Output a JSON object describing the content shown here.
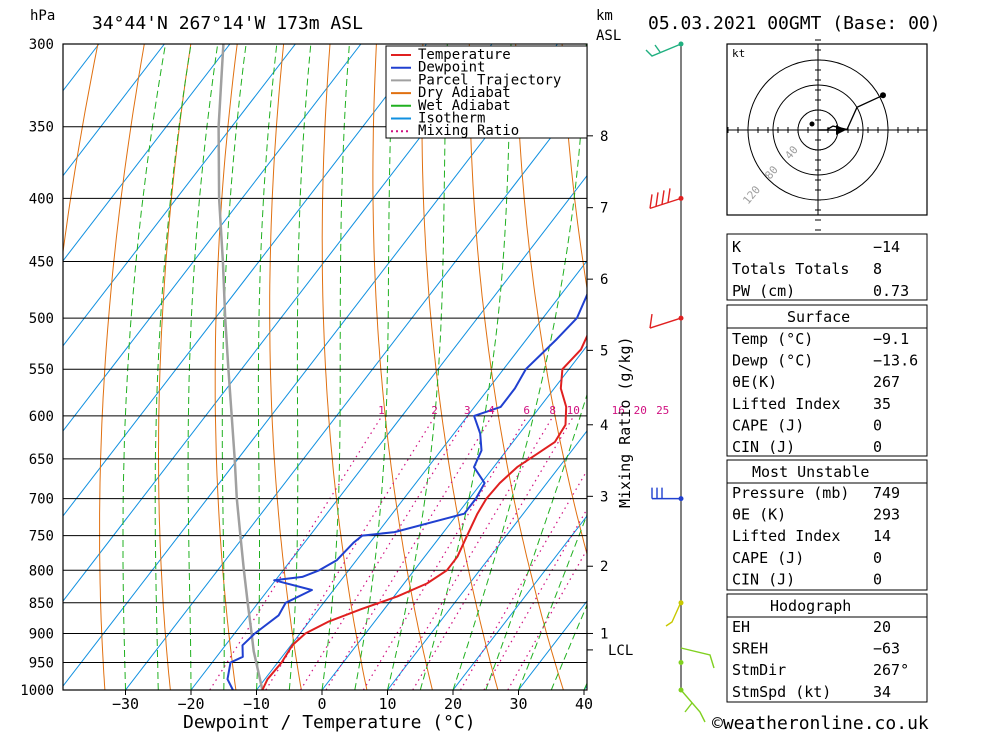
{
  "header": {
    "location": "34°44'N 267°14'W 173m ASL",
    "datetime": "05.03.2021 00GMT (Base: 00)",
    "hpa_label": "hPa",
    "km_label": "km",
    "asl_label": "ASL"
  },
  "footer": {
    "site": "©weatheronline.co.uk"
  },
  "colors": {
    "temperature": "#e02020",
    "dewpoint": "#2040d0",
    "parcel": "#a0a0a0",
    "dry_adiabat": "#e07010",
    "wet_adiabat": "#20b020",
    "isotherm": "#1090e0",
    "mixing_ratio": "#d01080",
    "wind_red": "#e02020",
    "wind_blue": "#2040d0",
    "wind_yellow": "#c8c800",
    "wind_green": "#80d020",
    "wind_teal": "#20b080"
  },
  "chart_data": {
    "type": "skew-t",
    "xlabel": "Dewpoint / Temperature (°C)",
    "ylabel": "hPa",
    "xlim": [
      -40,
      40
    ],
    "x_ticks": [
      -30,
      -20,
      -10,
      0,
      10,
      20,
      30,
      40
    ],
    "x_tick_labels": [
      "−30",
      "−20",
      "−10",
      "0",
      "10",
      "20",
      "30",
      "40"
    ],
    "ylim": [
      1000,
      300
    ],
    "y_scale": "log",
    "pressure_levels": [
      300,
      350,
      400,
      450,
      500,
      550,
      600,
      650,
      700,
      750,
      800,
      850,
      900,
      950,
      1000
    ],
    "km_ticks": [
      {
        "label": "8",
        "p": 356
      },
      {
        "label": "7",
        "p": 407
      },
      {
        "label": "6",
        "p": 465
      },
      {
        "label": "5",
        "p": 531
      },
      {
        "label": "4",
        "p": 610
      },
      {
        "label": "3",
        "p": 697
      },
      {
        "label": "2",
        "p": 794
      },
      {
        "label": "1",
        "p": 900
      },
      {
        "label": "LCL",
        "p": 928
      }
    ],
    "mixing_ratio_axis_label": "Mixing Ratio (g/kg)",
    "mixing_ratio_values": [
      "1",
      "2",
      "3",
      "4",
      "6",
      "8",
      "10",
      "16",
      "20",
      "25"
    ],
    "legend": [
      "Temperature",
      "Dewpoint",
      "Parcel Trajectory",
      "Dry Adiabat",
      "Wet Adiabat",
      "Isotherm",
      "Mixing Ratio"
    ],
    "legend_position": "top-right",
    "series": [
      {
        "name": "Temperature",
        "points": [
          [
            1000,
            -9.1
          ],
          [
            980,
            -9.6
          ],
          [
            950,
            -9.4
          ],
          [
            920,
            -9.8
          ],
          [
            900,
            -9.2
          ],
          [
            880,
            -7
          ],
          [
            860,
            -3.5
          ],
          [
            840,
            0.5
          ],
          [
            820,
            3.5
          ],
          [
            800,
            5
          ],
          [
            780,
            5
          ],
          [
            750,
            4
          ],
          [
            720,
            3
          ],
          [
            700,
            2.6
          ],
          [
            680,
            2.8
          ],
          [
            660,
            3.6
          ],
          [
            645,
            5
          ],
          [
            630,
            6.4
          ],
          [
            610,
            6
          ],
          [
            590,
            4
          ],
          [
            570,
            1
          ],
          [
            550,
            -1
          ],
          [
            530,
            -0.5
          ],
          [
            500,
            -2
          ],
          [
            470,
            -3
          ],
          [
            450,
            -5
          ],
          [
            420,
            -6.2
          ],
          [
            400,
            -8.5
          ],
          [
            370,
            -13
          ],
          [
            350,
            -16.5
          ],
          [
            320,
            -20.5
          ],
          [
            300,
            -25.5
          ]
        ]
      },
      {
        "name": "Dewpoint",
        "points": [
          [
            1000,
            -13.6
          ],
          [
            980,
            -15.7
          ],
          [
            950,
            -17.2
          ],
          [
            940,
            -16
          ],
          [
            920,
            -17.4
          ],
          [
            900,
            -16.9
          ],
          [
            870,
            -15.4
          ],
          [
            850,
            -15.8
          ],
          [
            830,
            -13.3
          ],
          [
            815,
            -20.2
          ],
          [
            810,
            -16.3
          ],
          [
            800,
            -14.5
          ],
          [
            785,
            -13
          ],
          [
            760,
            -12.5
          ],
          [
            750,
            -12
          ],
          [
            745,
            -7.5
          ],
          [
            720,
            1
          ],
          [
            700,
            1
          ],
          [
            680,
            0.5
          ],
          [
            660,
            -3
          ],
          [
            640,
            -3.8
          ],
          [
            620,
            -6
          ],
          [
            600,
            -9
          ],
          [
            590,
            -6
          ],
          [
            570,
            -6
          ],
          [
            550,
            -6.6
          ],
          [
            520,
            -5.4
          ],
          [
            500,
            -4.8
          ],
          [
            470,
            -6.5
          ],
          [
            450,
            -8.2
          ],
          [
            430,
            -9.4
          ],
          [
            420,
            -13.8
          ],
          [
            400,
            -11.5
          ],
          [
            380,
            -16.7
          ],
          [
            360,
            -18.6
          ],
          [
            340,
            -22.7
          ],
          [
            320,
            -26.5
          ],
          [
            300,
            -34.3
          ]
        ]
      },
      {
        "name": "Parcel Trajectory",
        "points": [
          [
            1000,
            -9.1
          ],
          [
            930,
            -15
          ],
          [
            900,
            -17.4
          ],
          [
            850,
            -21.6
          ],
          [
            800,
            -26
          ],
          [
            750,
            -30.6
          ],
          [
            700,
            -35.5
          ],
          [
            650,
            -40.5
          ],
          [
            600,
            -46
          ],
          [
            550,
            -52
          ],
          [
            500,
            -58.5
          ],
          [
            450,
            -65.5
          ],
          [
            400,
            -73.5
          ],
          [
            350,
            -82
          ],
          [
            300,
            -91
          ]
        ]
      }
    ],
    "wind_barbs": [
      {
        "p": 1000,
        "color_key": "wind_green"
      },
      {
        "p": 950,
        "color_key": "wind_green"
      },
      {
        "p": 850,
        "color_key": "wind_yellow"
      },
      {
        "p": 700,
        "color_key": "wind_blue"
      },
      {
        "p": 500,
        "color_key": "wind_red"
      },
      {
        "p": 400,
        "color_key": "wind_red"
      },
      {
        "p": 300,
        "color_key": "wind_teal"
      }
    ]
  },
  "hodograph": {
    "unit": "kt",
    "ring_labels": [
      "40",
      "80",
      "120"
    ],
    "points_norm": [
      [
        0.5,
        0.5
      ],
      [
        0.53,
        0.48
      ],
      [
        0.6,
        0.5
      ],
      [
        0.65,
        0.37
      ],
      [
        0.78,
        0.3
      ]
    ]
  },
  "indices": {
    "k_label": "K",
    "k_val": "−14",
    "tt_label": "Totals Totals",
    "tt_val": "8",
    "pw_label": "PW (cm)",
    "pw_val": "0.73",
    "surface": {
      "title": "Surface",
      "rows": [
        {
          "label": "Temp (°C)",
          "value": "−9.1"
        },
        {
          "label": "Dewp (°C)",
          "value": "−13.6"
        },
        {
          "label": "θE(K)",
          "value": "267"
        },
        {
          "label": "Lifted Index",
          "value": "35"
        },
        {
          "label": "CAPE (J)",
          "value": "0"
        },
        {
          "label": "CIN (J)",
          "value": "0"
        }
      ]
    },
    "most_unstable": {
      "title": "Most Unstable",
      "rows": [
        {
          "label": "Pressure (mb)",
          "value": "749"
        },
        {
          "label": "θE (K)",
          "value": "293"
        },
        {
          "label": "Lifted Index",
          "value": "14"
        },
        {
          "label": "CAPE (J)",
          "value": "0"
        },
        {
          "label": "CIN (J)",
          "value": "0"
        }
      ]
    },
    "hodograph_table": {
      "title": "Hodograph",
      "rows": [
        {
          "label": "EH",
          "value": "20"
        },
        {
          "label": "SREH",
          "value": "−63"
        },
        {
          "label": "StmDir",
          "value": "267°"
        },
        {
          "label": "StmSpd (kt)",
          "value": "34"
        }
      ]
    }
  }
}
